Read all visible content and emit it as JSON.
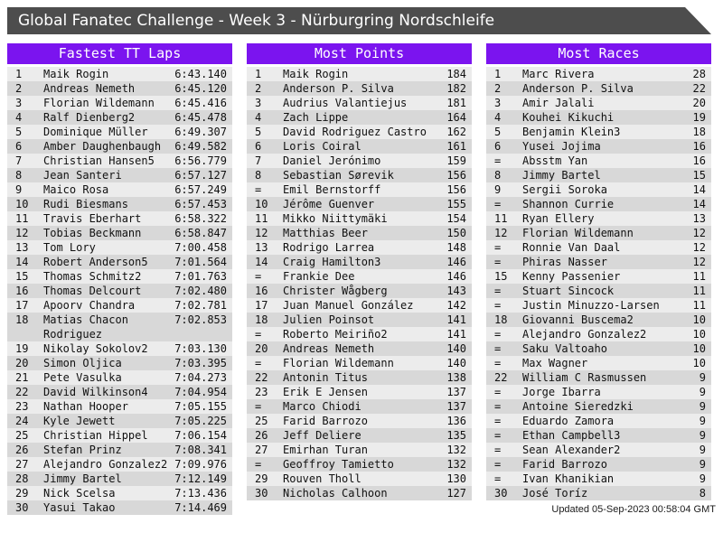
{
  "page": {
    "title": "Global Fanatec Challenge - Week 3 - Nürburgring Nordschleife",
    "updated": "Updated 05-Sep-2023 00:58:04 GMT"
  },
  "colors": {
    "accent_purple": "#7b14ef",
    "titlebar_gray": "#4d4d4d",
    "row_light": "#ececec",
    "row_dark": "#d8d8d8"
  },
  "boards": [
    {
      "title": "Fastest TT Laps",
      "rows": [
        {
          "rank": "1",
          "name": "Maik Rogin",
          "value": "6:43.140"
        },
        {
          "rank": "2",
          "name": "Andreas Nemeth",
          "value": "6:45.120"
        },
        {
          "rank": "3",
          "name": "Florian Wildemann",
          "value": "6:45.416"
        },
        {
          "rank": "4",
          "name": "Ralf Dienberg2",
          "value": "6:45.478"
        },
        {
          "rank": "5",
          "name": "Dominique Müller",
          "value": "6:49.307"
        },
        {
          "rank": "6",
          "name": "Amber Daughenbaugh",
          "value": "6:49.582"
        },
        {
          "rank": "7",
          "name": "Christian Hansen5",
          "value": "6:56.779"
        },
        {
          "rank": "8",
          "name": "Jean Santeri",
          "value": "6:57.127"
        },
        {
          "rank": "9",
          "name": "Maico Rosa",
          "value": "6:57.249"
        },
        {
          "rank": "10",
          "name": "Rudi Biesmans",
          "value": "6:57.453"
        },
        {
          "rank": "11",
          "name": "Travis Eberhart",
          "value": "6:58.322"
        },
        {
          "rank": "12",
          "name": "Tobias Beckmann",
          "value": "6:58.847"
        },
        {
          "rank": "13",
          "name": "Tom Lory",
          "value": "7:00.458"
        },
        {
          "rank": "14",
          "name": "Robert Anderson5",
          "value": "7:01.564"
        },
        {
          "rank": "15",
          "name": "Thomas Schmitz2",
          "value": "7:01.763"
        },
        {
          "rank": "16",
          "name": "Thomas Delcourt",
          "value": "7:02.480"
        },
        {
          "rank": "17",
          "name": "Apoorv Chandra",
          "value": "7:02.781"
        },
        {
          "rank": "18",
          "name": "Matias Chacon Rodriguez",
          "value": "7:02.853"
        },
        {
          "rank": "19",
          "name": "Nikolay Sokolov2",
          "value": "7:03.130"
        },
        {
          "rank": "20",
          "name": "Simon Oljica",
          "value": "7:03.395"
        },
        {
          "rank": "21",
          "name": "Pete Vasulka",
          "value": "7:04.273"
        },
        {
          "rank": "22",
          "name": "David Wilkinson4",
          "value": "7:04.954"
        },
        {
          "rank": "23",
          "name": "Nathan Hooper",
          "value": "7:05.155"
        },
        {
          "rank": "24",
          "name": "Kyle Jewett",
          "value": "7:05.225"
        },
        {
          "rank": "25",
          "name": "Christian Hippel",
          "value": "7:06.154"
        },
        {
          "rank": "26",
          "name": "Stefan Prinz",
          "value": "7:08.341"
        },
        {
          "rank": "27",
          "name": "Alejandro Gonzalez2",
          "value": "7:09.976"
        },
        {
          "rank": "28",
          "name": "Jimmy Bartel",
          "value": "7:12.149"
        },
        {
          "rank": "29",
          "name": "Nick Scelsa",
          "value": "7:13.436"
        },
        {
          "rank": "30",
          "name": "Yasui Takao",
          "value": "7:14.469"
        }
      ]
    },
    {
      "title": "Most Points",
      "rows": [
        {
          "rank": "1",
          "name": "Maik Rogin",
          "value": "184"
        },
        {
          "rank": "2",
          "name": "Anderson P. Silva",
          "value": "182"
        },
        {
          "rank": "3",
          "name": "Audrius Valantiejus",
          "value": "181"
        },
        {
          "rank": "4",
          "name": "Zach Lippe",
          "value": "164"
        },
        {
          "rank": "5",
          "name": "David Rodriguez Castro",
          "value": "162"
        },
        {
          "rank": "6",
          "name": "Loris Coiral",
          "value": "161"
        },
        {
          "rank": "7",
          "name": "Daniel Jerónimo",
          "value": "159"
        },
        {
          "rank": "8",
          "name": "Sebastian Sørevik",
          "value": "156"
        },
        {
          "rank": "=",
          "name": "Emil Bernstorff",
          "value": "156"
        },
        {
          "rank": "10",
          "name": "Jérôme Guenver",
          "value": "155"
        },
        {
          "rank": "11",
          "name": "Mikko Niittymäki",
          "value": "154"
        },
        {
          "rank": "12",
          "name": "Matthias Beer",
          "value": "150"
        },
        {
          "rank": "13",
          "name": "Rodrigo Larrea",
          "value": "148"
        },
        {
          "rank": "14",
          "name": "Craig Hamilton3",
          "value": "146"
        },
        {
          "rank": "=",
          "name": "Frankie Dee",
          "value": "146"
        },
        {
          "rank": "16",
          "name": "Christer Wågberg",
          "value": "143"
        },
        {
          "rank": "17",
          "name": "Juan Manuel González",
          "value": "142"
        },
        {
          "rank": "18",
          "name": "Julien Poinsot",
          "value": "141"
        },
        {
          "rank": "=",
          "name": "Roberto Meiriño2",
          "value": "141"
        },
        {
          "rank": "20",
          "name": "Andreas Nemeth",
          "value": "140"
        },
        {
          "rank": "=",
          "name": "Florian Wildemann",
          "value": "140"
        },
        {
          "rank": "22",
          "name": "Antonin Titus",
          "value": "138"
        },
        {
          "rank": "23",
          "name": "Erik E Jensen",
          "value": "137"
        },
        {
          "rank": "=",
          "name": "Marco Chiodi",
          "value": "137"
        },
        {
          "rank": "25",
          "name": "Farid Barrozo",
          "value": "136"
        },
        {
          "rank": "26",
          "name": "Jeff Deliere",
          "value": "135"
        },
        {
          "rank": "27",
          "name": "Emirhan Turan",
          "value": "132"
        },
        {
          "rank": "=",
          "name": "Geoffroy Tamietto",
          "value": "132"
        },
        {
          "rank": "29",
          "name": "Rouven Tholl",
          "value": "130"
        },
        {
          "rank": "30",
          "name": "Nicholas Calhoon",
          "value": "127"
        }
      ]
    },
    {
      "title": "Most Races",
      "rows": [
        {
          "rank": "1",
          "name": "Marc Rivera",
          "value": "28"
        },
        {
          "rank": "2",
          "name": "Anderson P. Silva",
          "value": "22"
        },
        {
          "rank": "3",
          "name": "Amir Jalali",
          "value": "20"
        },
        {
          "rank": "4",
          "name": "Kouhei Kikuchi",
          "value": "19"
        },
        {
          "rank": "5",
          "name": "Benjamin Klein3",
          "value": "18"
        },
        {
          "rank": "6",
          "name": "Yusei Jojima",
          "value": "16"
        },
        {
          "rank": "=",
          "name": "Absstm Yan",
          "value": "16"
        },
        {
          "rank": "8",
          "name": "Jimmy Bartel",
          "value": "15"
        },
        {
          "rank": "9",
          "name": "Sergii Soroka",
          "value": "14"
        },
        {
          "rank": "=",
          "name": "Shannon Currie",
          "value": "14"
        },
        {
          "rank": "11",
          "name": "Ryan Ellery",
          "value": "13"
        },
        {
          "rank": "12",
          "name": "Florian Wildemann",
          "value": "12"
        },
        {
          "rank": "=",
          "name": "Ronnie Van Daal",
          "value": "12"
        },
        {
          "rank": "=",
          "name": "Phiras Nasser",
          "value": "12"
        },
        {
          "rank": "15",
          "name": "Kenny Passenier",
          "value": "11"
        },
        {
          "rank": "=",
          "name": "Stuart Sincock",
          "value": "11"
        },
        {
          "rank": "=",
          "name": "Justin Minuzzo-Larsen",
          "value": "11"
        },
        {
          "rank": "18",
          "name": "Giovanni Buscema2",
          "value": "10"
        },
        {
          "rank": "=",
          "name": "Alejandro Gonzalez2",
          "value": "10"
        },
        {
          "rank": "=",
          "name": "Saku Valtoaho",
          "value": "10"
        },
        {
          "rank": "=",
          "name": "Max Wagner",
          "value": "10"
        },
        {
          "rank": "22",
          "name": "William C Rasmussen",
          "value": "9"
        },
        {
          "rank": "=",
          "name": "Jorge Ibarra",
          "value": "9"
        },
        {
          "rank": "=",
          "name": "Antoine Sieredzki",
          "value": "9"
        },
        {
          "rank": "=",
          "name": "Eduardo Zamora",
          "value": "9"
        },
        {
          "rank": "=",
          "name": "Ethan Campbell3",
          "value": "9"
        },
        {
          "rank": "=",
          "name": "Sean Alexander2",
          "value": "9"
        },
        {
          "rank": "=",
          "name": "Farid Barrozo",
          "value": "9"
        },
        {
          "rank": "=",
          "name": "Ivan Khanikian",
          "value": "9"
        },
        {
          "rank": "30",
          "name": "José Toríz",
          "value": "8"
        }
      ]
    }
  ]
}
